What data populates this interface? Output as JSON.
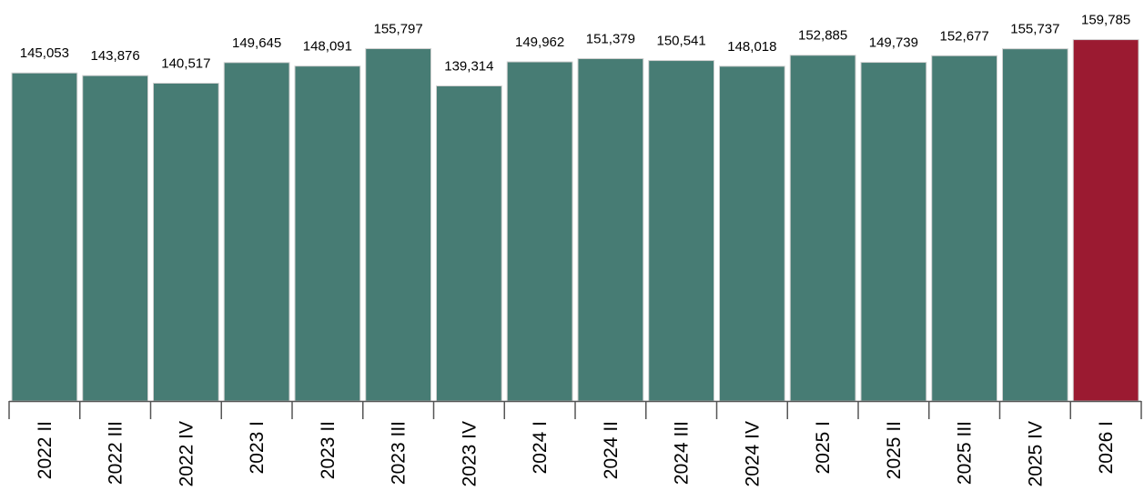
{
  "colors": {
    "bar": "#477c74",
    "highlight": "#9b1a31",
    "bar_edge": "#d0d0d0",
    "axis": "#555555"
  },
  "chart_data": {
    "type": "bar",
    "categories": [
      "2022 II",
      "2022 III",
      "2022 IV",
      "2023 I",
      "2023 II",
      "2023 III",
      "2023 IV",
      "2024 I",
      "2024 II",
      "2024 III",
      "2024 IV",
      "2025 I",
      "2025 II",
      "2025 III",
      "2025 IV",
      "2026 I"
    ],
    "values": [
      145053,
      143876,
      140517,
      149645,
      148091,
      155797,
      139314,
      149962,
      151379,
      150541,
      148018,
      152885,
      149739,
      152677,
      155737,
      159785
    ],
    "value_labels": [
      "145,053",
      "143,876",
      "140,517",
      "149,645",
      "148,091",
      "155,797",
      "139,314",
      "149,962",
      "151,379",
      "150,541",
      "148,018",
      "152,885",
      "149,739",
      "152,677",
      "155,737",
      "159,785"
    ],
    "highlight_index": 15,
    "ylim": [
      0,
      160000
    ],
    "grid": false,
    "legend": "none",
    "title": "",
    "xlabel": "",
    "ylabel": ""
  }
}
